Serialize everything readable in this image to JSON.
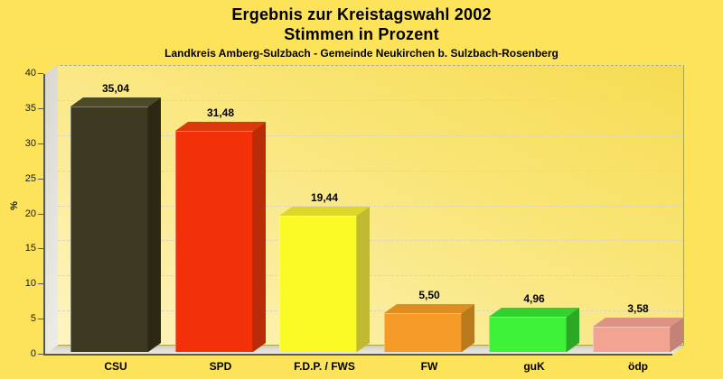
{
  "header": {
    "title_line1": "Ergebnis zur Kreistagswahl 2002",
    "title_line2": "Stimmen in Prozent",
    "subtitle": "Landkreis Amberg-Sulzbach - Gemeinde Neukirchen b. Sulzbach-Rosenberg"
  },
  "colors": {
    "page_background": "#FCE35A",
    "plot_border": "#ADA446",
    "gridline": "#D9D5C6",
    "axis": "#5B584C",
    "wall": "#DDDAD4",
    "floor": "#DCD9D2",
    "text": "#000000"
  },
  "chart_data": {
    "type": "bar",
    "style": "3d-column",
    "title": "Ergebnis zur Kreistagswahl 2002 - Stimmen in Prozent",
    "subtitle": "Landkreis Amberg-Sulzbach - Gemeinde Neukirchen b. Sulzbach-Rosenberg",
    "categories": [
      "CSU",
      "SPD",
      "F.D.P. / FWS",
      "FW",
      "guK",
      "ödp"
    ],
    "values": [
      35.04,
      31.48,
      19.44,
      5.5,
      4.96,
      3.58
    ],
    "value_labels": [
      "35,04",
      "31,48",
      "19,44",
      "5,50",
      "4,96",
      "3,58"
    ],
    "bar_colors": [
      {
        "party": "CSU",
        "front": "#3D3920",
        "top": "#4D4826",
        "side": "#2B2913"
      },
      {
        "party": "SPD",
        "front": "#F23108",
        "top": "#DC380E",
        "side": "#B92C07"
      },
      {
        "party": "F.D.P. / FWS",
        "front": "#FAFA26",
        "top": "#DFD62A",
        "side": "#C1B931"
      },
      {
        "party": "FW",
        "front": "#F69B27",
        "top": "#DE8D21",
        "side": "#B9791D"
      },
      {
        "party": "guK",
        "front": "#3EF23A",
        "top": "#32D22E",
        "side": "#2AA826"
      },
      {
        "party": "ödp",
        "front": "#F2A392",
        "top": "#DC9384",
        "side": "#C48276"
      }
    ],
    "xlabel": "",
    "ylabel": "%",
    "ylim": [
      0,
      40
    ],
    "yticks": [
      0,
      5,
      10,
      15,
      20,
      25,
      30,
      35,
      40
    ],
    "grid": "horizontal-dashed",
    "legend": "none"
  }
}
